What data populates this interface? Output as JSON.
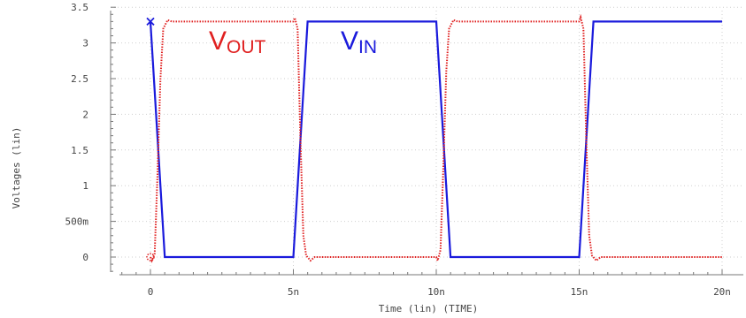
{
  "chart_data": {
    "type": "line",
    "xlabel": "Time (lin) (TIME)",
    "ylabel": "Voltages (lin)",
    "xlim": [
      -1,
      20.2
    ],
    "ylim": [
      -0.2,
      3.5
    ],
    "x_ticks": [
      {
        "value": 0,
        "label": "0"
      },
      {
        "value": 5,
        "label": "5n"
      },
      {
        "value": 10,
        "label": "10n"
      },
      {
        "value": 15,
        "label": "15n"
      },
      {
        "value": 20,
        "label": "20n"
      }
    ],
    "y_ticks": [
      {
        "value": 0,
        "label": "0"
      },
      {
        "value": 0.5,
        "label": "500m"
      },
      {
        "value": 1,
        "label": "1"
      },
      {
        "value": 1.5,
        "label": "1.5"
      },
      {
        "value": 2,
        "label": "2"
      },
      {
        "value": 2.5,
        "label": "2.5"
      },
      {
        "value": 3,
        "label": "3"
      },
      {
        "value": 3.5,
        "label": "3.5"
      }
    ],
    "grid": true,
    "series": [
      {
        "name_main": "V",
        "name_sub": "IN",
        "color": "#1a1adc",
        "style": "solid",
        "marker_start": "x",
        "x": [
          0,
          0.5,
          5,
          5.5,
          10,
          10.5,
          15,
          15.5,
          20
        ],
        "y": [
          3.3,
          0,
          0,
          3.3,
          3.3,
          0,
          0,
          3.3,
          3.3
        ]
      },
      {
        "name_main": "V",
        "name_sub": "OUT",
        "color": "#e02020",
        "style": "dotted",
        "marker_start": "circle",
        "x": [
          0,
          0.05,
          0.15,
          0.25,
          0.35,
          0.45,
          0.6,
          0.75,
          5,
          5.05,
          5.15,
          5.25,
          5.35,
          5.45,
          5.6,
          5.75,
          10,
          10.05,
          10.15,
          10.25,
          10.35,
          10.45,
          10.6,
          10.75,
          15,
          15.05,
          15.15,
          15.25,
          15.35,
          15.45,
          15.6,
          15.75,
          20
        ],
        "y": [
          0,
          -0.05,
          0.05,
          1.2,
          2.5,
          3.2,
          3.32,
          3.3,
          3.3,
          3.35,
          3.2,
          1.6,
          0.3,
          0.02,
          -0.05,
          0,
          0,
          -0.05,
          0.1,
          1.3,
          2.6,
          3.2,
          3.32,
          3.3,
          3.3,
          3.36,
          3.2,
          1.6,
          0.3,
          0.02,
          -0.05,
          0,
          0
        ]
      }
    ]
  }
}
